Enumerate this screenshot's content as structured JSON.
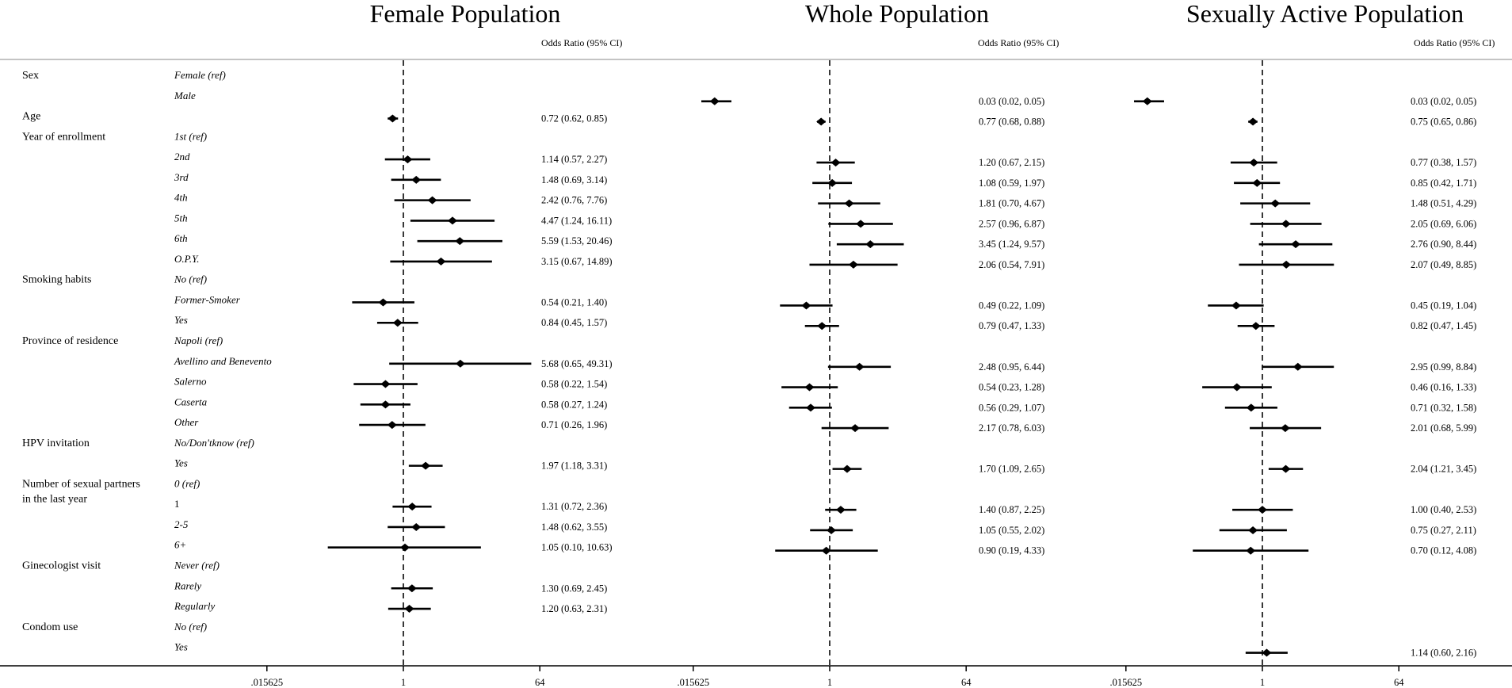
{
  "chart_data": {
    "type": "forest",
    "x_scale": "log",
    "ticks": [
      ".015625",
      "1",
      "64"
    ],
    "tick_values": [
      0.015625,
      1,
      64
    ],
    "xlim": [
      0.015625,
      64
    ],
    "or_header": "Odds Ratio (95% CI)",
    "variables": [
      {
        "label": "Sex",
        "categories": [
          {
            "label": "Female (ref)"
          },
          {
            "label": "Male"
          }
        ]
      },
      {
        "label": "Age",
        "categories": [
          {
            "label": ""
          }
        ]
      },
      {
        "label": "Year of enrollment",
        "categories": [
          {
            "label": "1st (ref)"
          },
          {
            "label": "2nd"
          },
          {
            "label": "3rd"
          },
          {
            "label": "4th"
          },
          {
            "label": "5th"
          },
          {
            "label": "6th"
          },
          {
            "label": "O.P.Y."
          }
        ]
      },
      {
        "label": "Smoking habits",
        "categories": [
          {
            "label": "No (ref)"
          },
          {
            "label": "Former-Smoker"
          },
          {
            "label": "Yes"
          }
        ]
      },
      {
        "label": "Province of residence",
        "categories": [
          {
            "label": "Napoli (ref)"
          },
          {
            "label": "Avellino and Benevento"
          },
          {
            "label": "Salerno"
          },
          {
            "label": "Caserta"
          },
          {
            "label": "Other"
          }
        ]
      },
      {
        "label": "HPV invitation",
        "categories": [
          {
            "label": "No/Don'tknow (ref)"
          },
          {
            "label": "Yes"
          }
        ]
      },
      {
        "label": "Number of sexual partners",
        "label2": "in the last year",
        "categories": [
          {
            "label": "0 (ref)"
          },
          {
            "label": "1",
            "italic": false
          },
          {
            "label": "2-5"
          },
          {
            "label": "6+"
          }
        ]
      },
      {
        "label": "Ginecologist visit",
        "categories": [
          {
            "label": "Never (ref)"
          },
          {
            "label": "Rarely"
          },
          {
            "label": "Regularly"
          }
        ]
      },
      {
        "label": "Condom use",
        "categories": [
          {
            "label": "No (ref)"
          },
          {
            "label": "Yes"
          }
        ]
      }
    ],
    "panels": [
      {
        "title": "Female Population",
        "estimates": [
          {
            "row": "Age",
            "or": 0.72,
            "lo": 0.62,
            "hi": 0.85,
            "text": "0.72 (0.62, 0.85)"
          },
          {
            "row": "2nd",
            "or": 1.14,
            "lo": 0.57,
            "hi": 2.27,
            "text": "1.14 (0.57, 2.27)"
          },
          {
            "row": "3rd",
            "or": 1.48,
            "lo": 0.69,
            "hi": 3.14,
            "text": "1.48 (0.69, 3.14)"
          },
          {
            "row": "4th",
            "or": 2.42,
            "lo": 0.76,
            "hi": 7.76,
            "text": "2.42 (0.76, 7.76)"
          },
          {
            "row": "5th",
            "or": 4.47,
            "lo": 1.24,
            "hi": 16.11,
            "text": "4.47 (1.24, 16.11)"
          },
          {
            "row": "6th",
            "or": 5.59,
            "lo": 1.53,
            "hi": 20.46,
            "text": "5.59 (1.53, 20.46)"
          },
          {
            "row": "O.P.Y.",
            "or": 3.15,
            "lo": 0.67,
            "hi": 14.89,
            "text": "3.15 (0.67, 14.89)"
          },
          {
            "row": "Former-Smoker",
            "or": 0.54,
            "lo": 0.21,
            "hi": 1.4,
            "text": "0.54 (0.21, 1.40)"
          },
          {
            "row": "Smoking Yes",
            "or": 0.84,
            "lo": 0.45,
            "hi": 1.57,
            "text": "0.84 (0.45, 1.57)"
          },
          {
            "row": "Avellino and Benevento",
            "or": 5.68,
            "lo": 0.65,
            "hi": 49.31,
            "text": "5.68 (0.65, 49.31)"
          },
          {
            "row": "Salerno",
            "or": 0.58,
            "lo": 0.22,
            "hi": 1.54,
            "text": "0.58 (0.22, 1.54)"
          },
          {
            "row": "Caserta",
            "or": 0.58,
            "lo": 0.27,
            "hi": 1.24,
            "text": "0.58 (0.27, 1.24)"
          },
          {
            "row": "Other",
            "or": 0.71,
            "lo": 0.26,
            "hi": 1.96,
            "text": "0.71 (0.26, 1.96)"
          },
          {
            "row": "HPV Yes",
            "or": 1.97,
            "lo": 1.18,
            "hi": 3.31,
            "text": "1.97 (1.18, 3.31)"
          },
          {
            "row": "Partners 1",
            "or": 1.31,
            "lo": 0.72,
            "hi": 2.36,
            "text": "1.31 (0.72, 2.36)"
          },
          {
            "row": "Partners 2-5",
            "or": 1.48,
            "lo": 0.62,
            "hi": 3.55,
            "text": "1.48 (0.62, 3.55)"
          },
          {
            "row": "Partners 6+",
            "or": 1.05,
            "lo": 0.1,
            "hi": 10.63,
            "text": "1.05 (0.10, 10.63)"
          },
          {
            "row": "Rarely",
            "or": 1.3,
            "lo": 0.69,
            "hi": 2.45,
            "text": "1.30 (0.69, 2.45)"
          },
          {
            "row": "Regularly",
            "or": 1.2,
            "lo": 0.63,
            "hi": 2.31,
            "text": "1.20 (0.63, 2.31)"
          }
        ]
      },
      {
        "title": "Whole Population",
        "estimates": [
          {
            "row": "Male",
            "or": 0.03,
            "lo": 0.02,
            "hi": 0.05,
            "text": "0.03 (0.02, 0.05)"
          },
          {
            "row": "Age",
            "or": 0.77,
            "lo": 0.68,
            "hi": 0.88,
            "text": "0.77 (0.68, 0.88)"
          },
          {
            "row": "2nd",
            "or": 1.2,
            "lo": 0.67,
            "hi": 2.15,
            "text": "1.20 (0.67, 2.15)"
          },
          {
            "row": "3rd",
            "or": 1.08,
            "lo": 0.59,
            "hi": 1.97,
            "text": "1.08 (0.59, 1.97)"
          },
          {
            "row": "4th",
            "or": 1.81,
            "lo": 0.7,
            "hi": 4.67,
            "text": "1.81 (0.70, 4.67)"
          },
          {
            "row": "5th",
            "or": 2.57,
            "lo": 0.96,
            "hi": 6.87,
            "text": "2.57 (0.96, 6.87)"
          },
          {
            "row": "6th",
            "or": 3.45,
            "lo": 1.24,
            "hi": 9.57,
            "text": "3.45 (1.24, 9.57)"
          },
          {
            "row": "O.P.Y.",
            "or": 2.06,
            "lo": 0.54,
            "hi": 7.91,
            "text": "2.06 (0.54, 7.91)"
          },
          {
            "row": "Former-Smoker",
            "or": 0.49,
            "lo": 0.22,
            "hi": 1.09,
            "text": "0.49 (0.22, 1.09)"
          },
          {
            "row": "Smoking Yes",
            "or": 0.79,
            "lo": 0.47,
            "hi": 1.33,
            "text": "0.79 (0.47, 1.33)"
          },
          {
            "row": "Avellino and Benevento",
            "or": 2.48,
            "lo": 0.95,
            "hi": 6.44,
            "text": "2.48 (0.95, 6.44)"
          },
          {
            "row": "Salerno",
            "or": 0.54,
            "lo": 0.23,
            "hi": 1.28,
            "text": "0.54 (0.23, 1.28)"
          },
          {
            "row": "Caserta",
            "or": 0.56,
            "lo": 0.29,
            "hi": 1.07,
            "text": "0.56 (0.29, 1.07)"
          },
          {
            "row": "Other",
            "or": 2.17,
            "lo": 0.78,
            "hi": 6.03,
            "text": "2.17 (0.78, 6.03)"
          },
          {
            "row": "HPV Yes",
            "or": 1.7,
            "lo": 1.09,
            "hi": 2.65,
            "text": "1.70 (1.09, 2.65)"
          },
          {
            "row": "Partners 1",
            "or": 1.4,
            "lo": 0.87,
            "hi": 2.25,
            "text": "1.40 (0.87, 2.25)"
          },
          {
            "row": "Partners 2-5",
            "or": 1.05,
            "lo": 0.55,
            "hi": 2.02,
            "text": "1.05 (0.55, 2.02)"
          },
          {
            "row": "Partners 6+",
            "or": 0.9,
            "lo": 0.19,
            "hi": 4.33,
            "text": "0.90 (0.19, 4.33)"
          }
        ]
      },
      {
        "title": "Sexually Active Population",
        "estimates": [
          {
            "row": "Male",
            "or": 0.03,
            "lo": 0.02,
            "hi": 0.05,
            "text": "0.03 (0.02, 0.05)"
          },
          {
            "row": "Age",
            "or": 0.75,
            "lo": 0.65,
            "hi": 0.86,
            "text": "0.75 (0.65, 0.86)"
          },
          {
            "row": "2nd",
            "or": 0.77,
            "lo": 0.38,
            "hi": 1.57,
            "text": "0.77 (0.38, 1.57)"
          },
          {
            "row": "3rd",
            "or": 0.85,
            "lo": 0.42,
            "hi": 1.71,
            "text": "0.85 (0.42, 1.71)"
          },
          {
            "row": "4th",
            "or": 1.48,
            "lo": 0.51,
            "hi": 4.29,
            "text": "1.48 (0.51, 4.29)"
          },
          {
            "row": "5th",
            "or": 2.05,
            "lo": 0.69,
            "hi": 6.06,
            "text": "2.05 (0.69, 6.06)"
          },
          {
            "row": "6th",
            "or": 2.76,
            "lo": 0.9,
            "hi": 8.44,
            "text": "2.76 (0.90, 8.44)"
          },
          {
            "row": "O.P.Y.",
            "or": 2.07,
            "lo": 0.49,
            "hi": 8.85,
            "text": "2.07 (0.49, 8.85)"
          },
          {
            "row": "Former-Smoker",
            "or": 0.45,
            "lo": 0.19,
            "hi": 1.04,
            "text": "0.45 (0.19, 1.04)"
          },
          {
            "row": "Smoking Yes",
            "or": 0.82,
            "lo": 0.47,
            "hi": 1.45,
            "text": "0.82 (0.47, 1.45)"
          },
          {
            "row": "Avellino and Benevento",
            "or": 2.95,
            "lo": 0.99,
            "hi": 8.84,
            "text": "2.95 (0.99, 8.84)"
          },
          {
            "row": "Salerno",
            "or": 0.46,
            "lo": 0.16,
            "hi": 1.33,
            "text": "0.46 (0.16, 1.33)"
          },
          {
            "row": "Caserta",
            "or": 0.71,
            "lo": 0.32,
            "hi": 1.58,
            "text": "0.71 (0.32, 1.58)"
          },
          {
            "row": "Other",
            "or": 2.01,
            "lo": 0.68,
            "hi": 5.99,
            "text": "2.01 (0.68, 5.99)"
          },
          {
            "row": "HPV Yes",
            "or": 2.04,
            "lo": 1.21,
            "hi": 3.45,
            "text": "2.04 (1.21, 3.45)"
          },
          {
            "row": "Partners 1",
            "or": 1.0,
            "lo": 0.4,
            "hi": 2.53,
            "text": "1.00 (0.40, 2.53)"
          },
          {
            "row": "Partners 2-5",
            "or": 0.75,
            "lo": 0.27,
            "hi": 2.11,
            "text": "0.75 (0.27, 2.11)"
          },
          {
            "row": "Partners 6+",
            "or": 0.7,
            "lo": 0.12,
            "hi": 4.08,
            "text": "0.70 (0.12, 4.08)"
          },
          {
            "row": "Condom Yes",
            "or": 1.14,
            "lo": 0.6,
            "hi": 2.16,
            "text": "1.14 (0.60, 2.16)"
          }
        ]
      }
    ]
  }
}
